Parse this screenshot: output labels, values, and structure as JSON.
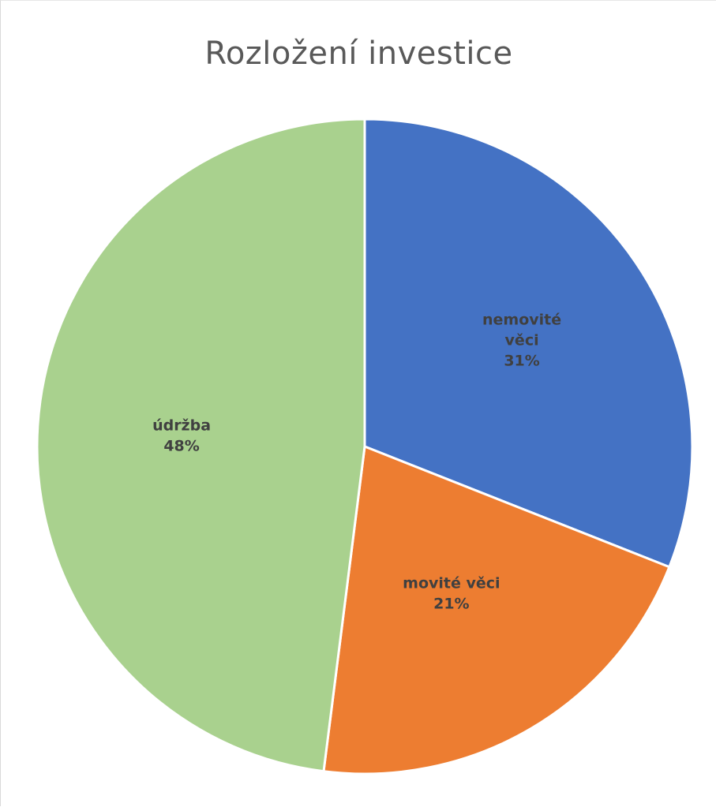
{
  "chart_data": {
    "type": "pie",
    "title": "Rozložení investice",
    "slices": [
      {
        "label": "nemovité věci",
        "label_lines": [
          "nemovité",
          "věci"
        ],
        "value": 31,
        "value_label": "31%",
        "color": "#4472C4"
      },
      {
        "label": "movité věci",
        "label_lines": [
          "movité věci"
        ],
        "value": 21,
        "value_label": "21%",
        "color": "#ED7D31"
      },
      {
        "label": "údržba",
        "label_lines": [
          "údržba"
        ],
        "value": 48,
        "value_label": "48%",
        "color": "#A9D18E"
      }
    ],
    "start_angle_deg": 0,
    "direction": "clockwise",
    "legend": "none"
  }
}
